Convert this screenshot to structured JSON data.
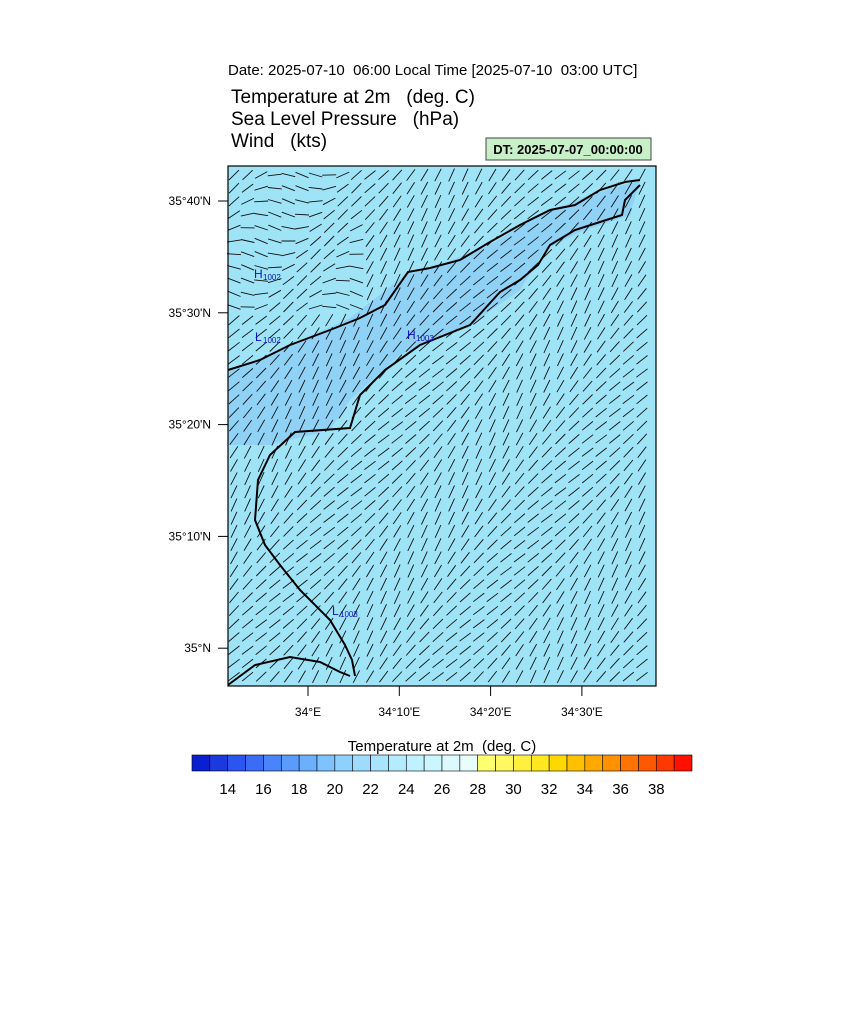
{
  "header": {
    "date": "Date: 2025-07-10  06:00 Local Time [2025-07-10  03:00 UTC]",
    "titles": [
      "Temperature at 2m   (deg. C)",
      "Sea Level Pressure   (hPa)",
      "Wind   (kts)"
    ],
    "dt_box": "DT: 2025-07-07_00:00:00"
  },
  "map": {
    "lat_ticks": [
      "35°40'N",
      "35°30'N",
      "35°20'N",
      "35°10'N",
      "35°N"
    ],
    "lon_ticks": [
      "34°E",
      "34°10'E",
      "34°20'E",
      "34°30'E"
    ],
    "pressure_labels": [
      {
        "letter": "H",
        "value": "1002"
      },
      {
        "letter": "L",
        "value": "1002"
      },
      {
        "letter": "H",
        "value": "1003"
      },
      {
        "letter": "L",
        "value": "1003"
      }
    ]
  },
  "colorbar": {
    "title": "Temperature at 2m  (deg. C)",
    "labels": [
      "14",
      "16",
      "18",
      "20",
      "22",
      "24",
      "26",
      "28",
      "30",
      "32",
      "34",
      "36",
      "38"
    ],
    "colors": [
      "#0a1fd0",
      "#1a3ae0",
      "#2a55ee",
      "#3a6cf5",
      "#4a84fa",
      "#5a9cfc",
      "#6cb0fd",
      "#7ec2fe",
      "#8ed0fe",
      "#9edcfe",
      "#a8e4fe",
      "#b2ecfe",
      "#bff2fe",
      "#ccf6fe",
      "#dcfafe",
      "#e8fdfe",
      "#ffff70",
      "#fff860",
      "#fff040",
      "#ffe820",
      "#ffd800",
      "#ffc000",
      "#ffa800",
      "#ff9000",
      "#ff7400",
      "#ff5800",
      "#ff3800",
      "#ff1000"
    ]
  }
}
